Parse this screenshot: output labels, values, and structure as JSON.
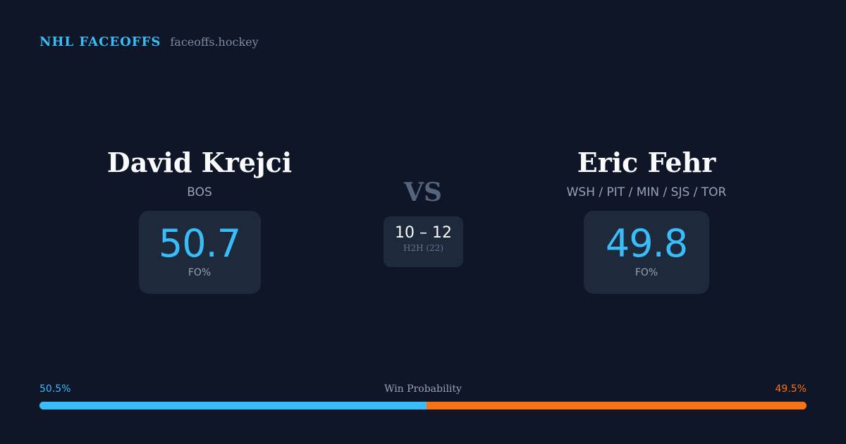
{
  "brand": {
    "title": "NHL FACEOFFS",
    "domain": "faceoffs.hockey"
  },
  "left": {
    "name": "David Krejci",
    "team": "BOS",
    "fo_pct": "50.7",
    "fo_label": "FO%"
  },
  "right": {
    "name": "Eric Fehr",
    "team": "WSH / PIT / MIN / SJS / TOR",
    "fo_pct": "49.8",
    "fo_label": "FO%"
  },
  "vs": "VS",
  "h2h": {
    "score": "10 – 12",
    "label": "H2H (22)"
  },
  "win_probability": {
    "label": "Win Probability",
    "left": "50.5%",
    "right": "49.5%",
    "left_value": 50.5,
    "right_value": 49.5
  },
  "colors": {
    "accent_left": "#38bdf8",
    "accent_right": "#f97316",
    "background": "#0e1628",
    "card": "#1e293b"
  }
}
